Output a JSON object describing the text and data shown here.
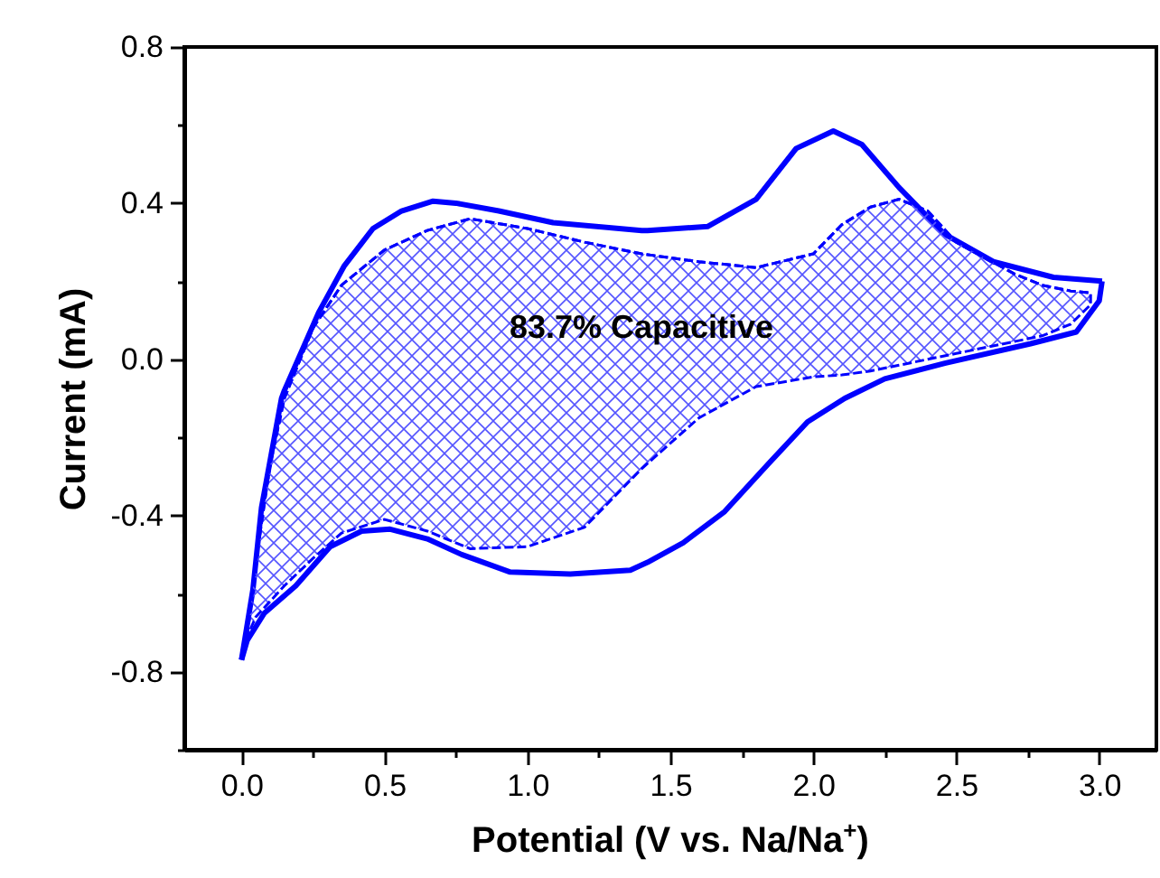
{
  "chart_data": {
    "type": "line",
    "xlabel": "Potential (V vs. Na/Na$^{+}$)",
    "ylabel": "Current (mA)",
    "xlim": [
      -0.2,
      3.2
    ],
    "ylim": [
      -1.0,
      0.8
    ],
    "xticks": [
      {
        "value": 0,
        "label": "0.0"
      },
      {
        "value": 0.25,
        "label": null
      },
      0.5,
      {
        "value": 0.75,
        "label": null
      },
      {
        "value": 1,
        "label": "1.0"
      },
      {
        "value": 1.25,
        "label": null
      },
      1.5,
      {
        "value": 1.75,
        "label": null
      },
      {
        "value": 2,
        "label": "2.0"
      },
      {
        "value": 2.25,
        "label": null
      },
      2.5,
      {
        "value": 2.75,
        "label": null
      },
      {
        "value": 3,
        "label": "3.0"
      }
    ],
    "yticks": [
      {
        "value": -1.0,
        "label": null
      },
      -0.8,
      {
        "value": -0.6,
        "label": null
      },
      -0.4,
      {
        "value": -0.2,
        "label": null
      },
      {
        "value": 0,
        "label": "0.0"
      },
      {
        "value": 0.2,
        "label": null
      },
      0.4,
      {
        "value": 0.6,
        "label": null
      },
      0.8
    ],
    "grid": false,
    "marker": "none",
    "annotations": [
      "83.7% Capacitive"
    ],
    "series": [
      {
        "line_style": "solid",
        "color": "#0000ff",
        "x": [
          0.0,
          0.04,
          0.07,
          0.14,
          0.15,
          0.27,
          0.36,
          0.46,
          0.56,
          0.67,
          0.75,
          0.9,
          1.09,
          1.4,
          1.42,
          1.63,
          1.8,
          1.94,
          2.07,
          2.17,
          2.3,
          2.46,
          2.63,
          2.84,
          3.01
        ],
        "values": [
          -0.77,
          -0.59,
          -0.38,
          -0.1,
          -0.08,
          0.12,
          0.24,
          0.335,
          0.38,
          0.405,
          0.4,
          0.38,
          0.35,
          0.33,
          0.33,
          0.34,
          0.41,
          0.54,
          0.585,
          0.55,
          0.44,
          0.32,
          0.25,
          0.21,
          0.2
        ]
      },
      {
        "line_style": "solid",
        "color": "#0000ff",
        "x": [
          3.01,
          3.0,
          2.92,
          2.76,
          2.46,
          2.25,
          2.11,
          1.98,
          1.84,
          1.69,
          1.545,
          1.42,
          1.36,
          1.15,
          0.94,
          0.77,
          0.65,
          0.52,
          0.42,
          0.31,
          0.19,
          0.08,
          0.02,
          0.0
        ],
        "values": [
          0.2,
          0.15,
          0.07,
          0.04,
          -0.01,
          -0.05,
          -0.1,
          -0.16,
          -0.27,
          -0.39,
          -0.47,
          -0.52,
          -0.54,
          -0.55,
          -0.545,
          -0.5,
          -0.46,
          -0.435,
          -0.44,
          -0.48,
          -0.58,
          -0.65,
          -0.72,
          -0.77
        ]
      },
      {
        "line_style": "dashed",
        "color": "#0000ff",
        "x": [
          0.02,
          0.05,
          0.1,
          0.15,
          0.25,
          0.35,
          0.5,
          0.65,
          0.8,
          1.0,
          1.2,
          1.4,
          1.6,
          1.8,
          2.0,
          2.1,
          2.2,
          2.3,
          2.4,
          2.5,
          2.6,
          2.7,
          2.8,
          2.9,
          2.97
        ],
        "values": [
          -0.71,
          -0.52,
          -0.27,
          -0.1,
          0.08,
          0.19,
          0.28,
          0.33,
          0.36,
          0.335,
          0.3,
          0.27,
          0.25,
          0.235,
          0.27,
          0.345,
          0.39,
          0.41,
          0.38,
          0.3,
          0.26,
          0.22,
          0.19,
          0.175,
          0.17
        ],
        "upper": [
          -0.71,
          -0.52,
          -0.27,
          -0.1,
          0.08,
          0.19,
          0.28,
          0.33,
          0.36,
          0.335,
          0.3,
          0.27,
          0.25,
          0.235,
          0.27,
          0.345,
          0.39,
          0.41,
          0.38,
          0.3,
          0.26,
          0.22,
          0.19,
          0.175,
          0.17
        ],
        "lower": [
          -0.71,
          -0.66,
          -0.62,
          -0.58,
          -0.51,
          -0.445,
          -0.41,
          -0.44,
          -0.485,
          -0.48,
          -0.43,
          -0.28,
          -0.15,
          -0.07,
          -0.045,
          -0.04,
          -0.03,
          -0.015,
          0.0,
          0.015,
          0.03,
          0.045,
          0.06,
          0.09,
          0.14
        ]
      }
    ]
  }
}
